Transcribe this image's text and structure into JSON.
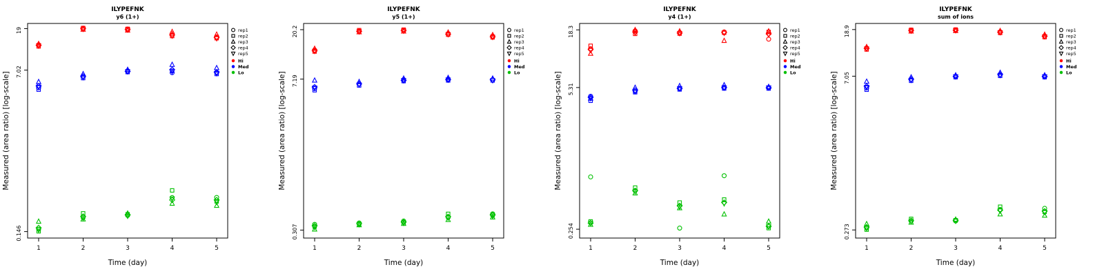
{
  "figure": {
    "background": "#ffffff"
  },
  "legend": {
    "reps": [
      {
        "name": "rep1",
        "symbol": "circle"
      },
      {
        "name": "rep2",
        "symbol": "square"
      },
      {
        "name": "rep3",
        "symbol": "triangle-up"
      },
      {
        "name": "rep4",
        "symbol": "diamond"
      },
      {
        "name": "rep5",
        "symbol": "triangle-down"
      }
    ],
    "levels": [
      {
        "name": "Hi",
        "color": "#ff0000"
      },
      {
        "name": "Med",
        "color": "#0000ff"
      },
      {
        "name": "Lo",
        "color": "#00c000"
      }
    ]
  },
  "chart_data": [
    {
      "id": "y6",
      "type": "scatter",
      "title": "ILYPEFNK",
      "subtitle": "y6 (1+)",
      "xlabel": "Time (day)",
      "ylabel": "Measured (area ratio) [log-scale]",
      "log_scale": true,
      "x_ticks": [
        1,
        2,
        3,
        4,
        5
      ],
      "ylim": [
        0.125,
        21.5
      ],
      "y_ticks": [
        {
          "value": 19,
          "label": "19"
        },
        {
          "value": 7.02,
          "label": "7.02"
        },
        {
          "value": 0.146,
          "label": "0.146"
        }
      ],
      "levels": [
        {
          "name": "Hi",
          "values_by_day": [
            [
              12.9,
              12.4,
              13.2,
              12.7,
              12.6
            ],
            [
              18.9,
              19.3,
              18.6,
              19.0,
              18.8
            ],
            [
              18.4,
              18.9,
              18.2,
              18.6,
              18.5
            ],
            [
              16.8,
              15.9,
              17.6,
              16.3,
              16.0
            ],
            [
              15.6,
              15.1,
              16.5,
              15.3,
              15.0
            ]
          ]
        },
        {
          "name": "Med",
          "values_by_day": [
            [
              4.6,
              4.4,
              5.3,
              4.8,
              4.7
            ],
            [
              6.1,
              5.8,
              6.4,
              6.0,
              5.9
            ],
            [
              6.9,
              6.7,
              7.1,
              6.8,
              6.8
            ],
            [
              6.6,
              6.9,
              8.0,
              7.1,
              6.8
            ],
            [
              6.6,
              6.4,
              7.4,
              6.7,
              6.5
            ]
          ]
        },
        {
          "name": "Lo",
          "values_by_day": [
            [
              0.155,
              0.147,
              0.186,
              0.16,
              0.152
            ],
            [
              0.205,
              0.226,
              0.196,
              0.21,
              0.201
            ],
            [
              0.215,
              0.221,
              0.226,
              0.218,
              0.212
            ],
            [
              0.33,
              0.392,
              0.286,
              0.312,
              0.321
            ],
            [
              0.331,
              0.301,
              0.272,
              0.312,
              0.296
            ]
          ]
        }
      ]
    },
    {
      "id": "y5",
      "type": "scatter",
      "title": "ILYPEFNK",
      "subtitle": "y5 (1+)",
      "xlabel": "Time (day)",
      "ylabel": "Measured (area ratio) [log-scale]",
      "log_scale": true,
      "x_ticks": [
        1,
        2,
        3,
        4,
        5
      ],
      "ylim": [
        0.26,
        23
      ],
      "y_ticks": [
        {
          "value": 20.2,
          "label": "20.2"
        },
        {
          "value": 7.19,
          "label": "7.19"
        },
        {
          "value": 0.307,
          "label": "0.307"
        }
      ],
      "levels": [
        {
          "name": "Hi",
          "values_by_day": [
            [
              13.2,
              12.8,
              13.6,
              13.0,
              12.9
            ],
            [
              19.6,
              20.0,
              19.2,
              19.5,
              19.4
            ],
            [
              19.9,
              20.2,
              19.5,
              19.8,
              19.7
            ],
            [
              18.6,
              18.2,
              19.1,
              18.4,
              18.3
            ],
            [
              17.6,
              17.2,
              18.1,
              17.4,
              17.3
            ]
          ]
        },
        {
          "name": "Med",
          "values_by_day": [
            [
              5.9,
              5.7,
              7.0,
              6.1,
              6.0
            ],
            [
              6.5,
              6.3,
              6.8,
              6.5,
              6.4
            ],
            [
              7.1,
              6.9,
              7.3,
              7.0,
              7.0
            ],
            [
              7.2,
              7.0,
              7.4,
              7.1,
              7.1
            ],
            [
              7.1,
              7.0,
              7.3,
              7.1,
              7.0
            ]
          ]
        },
        {
          "name": "Lo",
          "values_by_day": [
            [
              0.346,
              0.331,
              0.312,
              0.336,
              0.326
            ],
            [
              0.356,
              0.346,
              0.341,
              0.351,
              0.346
            ],
            [
              0.371,
              0.361,
              0.351,
              0.363,
              0.356
            ],
            [
              0.401,
              0.431,
              0.381,
              0.406,
              0.396
            ],
            [
              0.431,
              0.421,
              0.401,
              0.421,
              0.411
            ]
          ]
        }
      ]
    },
    {
      "id": "y4",
      "type": "scatter",
      "title": "ILYPEFNK",
      "subtitle": "y4 (1+)",
      "xlabel": "Time (day)",
      "ylabel": "Measured (area ratio) [log-scale]",
      "log_scale": true,
      "x_ticks": [
        1,
        2,
        3,
        4,
        5
      ],
      "ylim": [
        0.21,
        21
      ],
      "y_ticks": [
        {
          "value": 18.3,
          "label": "18.3"
        },
        {
          "value": 5.31,
          "label": "5.31"
        },
        {
          "value": 0.254,
          "label": "0.254"
        }
      ],
      "levels": [
        {
          "name": "Hi",
          "values_by_day": [
            [
              12.2,
              13.0,
              11.0,
              12.0,
              11.8
            ],
            [
              17.9,
              16.8,
              18.3,
              17.5,
              17.2
            ],
            [
              17.3,
              16.9,
              17.8,
              17.1,
              17.0
            ],
            [
              17.5,
              17.2,
              14.5,
              17.3,
              17.1
            ],
            [
              15.0,
              17.5,
              17.8,
              16.8,
              16.5
            ]
          ]
        },
        {
          "name": "Med",
          "values_by_day": [
            [
              4.4,
              4.0,
              4.2,
              4.3,
              4.2
            ],
            [
              4.9,
              4.8,
              5.3,
              5.0,
              4.9
            ],
            [
              5.2,
              5.1,
              5.5,
              5.2,
              5.2
            ],
            [
              5.3,
              5.2,
              5.6,
              5.3,
              5.3
            ],
            [
              5.3,
              5.2,
              5.4,
              5.3,
              5.3
            ]
          ]
        },
        {
          "name": "Lo",
          "values_by_day": [
            [
              0.78,
              0.3,
              0.28,
              0.29,
              0.29
            ],
            [
              0.58,
              0.62,
              0.55,
              0.58,
              0.57
            ],
            [
              0.26,
              0.45,
              0.4,
              0.42,
              0.41
            ],
            [
              0.8,
              0.48,
              0.35,
              0.45,
              0.44
            ],
            [
              0.27,
              0.26,
              0.3,
              0.27,
              0.27
            ]
          ]
        }
      ]
    },
    {
      "id": "sum",
      "type": "scatter",
      "title": "ILYPEFNK",
      "subtitle": "sum of ions",
      "xlabel": "Time (day)",
      "ylabel": "Measured (area ratio) [log-scale]",
      "log_scale": true,
      "x_ticks": [
        1,
        2,
        3,
        4,
        5
      ],
      "ylim": [
        0.23,
        21.5
      ],
      "y_ticks": [
        {
          "value": 18.9,
          "label": "18.9"
        },
        {
          "value": 7.05,
          "label": "7.05"
        },
        {
          "value": 0.273,
          "label": "0.273"
        }
      ],
      "levels": [
        {
          "name": "Hi",
          "values_by_day": [
            [
              12.8,
              12.4,
              13.1,
              12.7,
              12.6
            ],
            [
              18.5,
              18.8,
              18.2,
              18.5,
              18.4
            ],
            [
              18.7,
              18.9,
              18.4,
              18.6,
              18.6
            ],
            [
              18.0,
              17.6,
              18.4,
              17.9,
              17.8
            ],
            [
              16.5,
              16.1,
              17.0,
              16.4,
              16.3
            ]
          ]
        },
        {
          "name": "Med",
          "values_by_day": [
            [
              5.5,
              5.3,
              6.3,
              5.7,
              5.6
            ],
            [
              6.6,
              6.4,
              6.9,
              6.6,
              6.5
            ],
            [
              7.0,
              6.9,
              7.2,
              7.0,
              7.0
            ],
            [
              7.3,
              7.1,
              7.6,
              7.3,
              7.2
            ],
            [
              7.0,
              6.9,
              7.2,
              7.0,
              7.0
            ]
          ]
        },
        {
          "name": "Lo",
          "values_by_day": [
            [
              0.285,
              0.275,
              0.31,
              0.29,
              0.283
            ],
            [
              0.33,
              0.345,
              0.32,
              0.332,
              0.328
            ],
            [
              0.33,
              0.335,
              0.341,
              0.333,
              0.33
            ],
            [
              0.42,
              0.446,
              0.381,
              0.415,
              0.41
            ],
            [
              0.431,
              0.401,
              0.371,
              0.406,
              0.396
            ]
          ]
        }
      ]
    }
  ]
}
